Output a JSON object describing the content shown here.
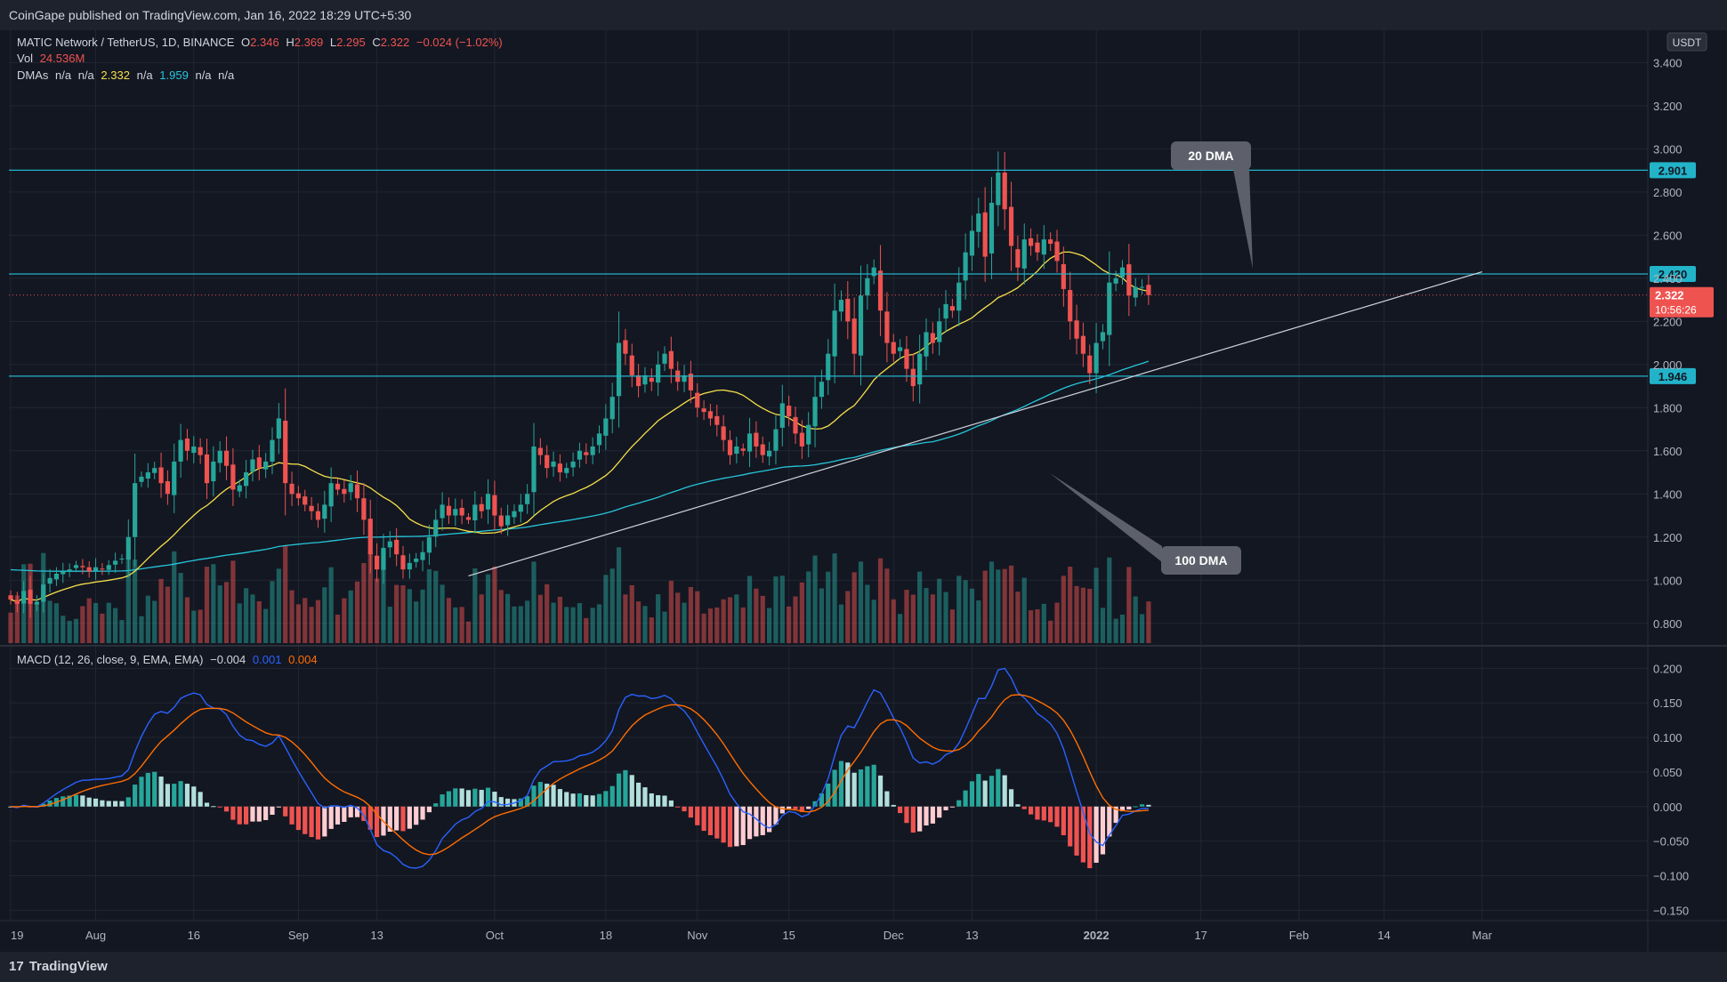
{
  "header": {
    "published": "CoinGape published on TradingView.com, Jan 16, 2022 18:29 UTC+5:30"
  },
  "footer": {
    "brand": "TradingView",
    "logo_mark": "17"
  },
  "legend": {
    "title": "MATIC Network / TetherUS, 1D, BINANCE",
    "o_label": "O",
    "o": "2.346",
    "h_label": "H",
    "h": "2.369",
    "l_label": "L",
    "l": "2.295",
    "c_label": "C",
    "c": "2.322",
    "chg": "−0.024 (−1.02%)",
    "vol_label": "Vol",
    "vol": "24.536M",
    "dma_label": "DMAs",
    "dma_values": [
      "n/a",
      "n/a",
      "2.332",
      "n/a",
      "1.959",
      "n/a",
      "n/a"
    ],
    "macd_label": "MACD (12, 26, close, 9, EMA, EMA)",
    "macd_values": [
      "−0.004",
      "0.001",
      "0.004"
    ]
  },
  "colors": {
    "bg": "#131722",
    "up": "#26a69a",
    "down": "#ef5350",
    "ma20": "#f5e04a",
    "ma100": "#26c6da",
    "macd": "#2962ff",
    "signal": "#ff6d00",
    "level": "#22b3c9",
    "currency_box": "#2a2e39"
  },
  "chart_data": {
    "type": "candlestick",
    "symbol": "MATIC Network / TetherUS",
    "interval": "1D",
    "exchange": "BINANCE",
    "currency": "USDT",
    "y_ticks": [
      "3.400",
      "3.200",
      "3.000",
      "2.800",
      "2.600",
      "2.400",
      "2.200",
      "2.000",
      "1.800",
      "1.600",
      "1.400",
      "1.200",
      "1.000",
      "0.800"
    ],
    "ylim": [
      0.7,
      3.55
    ],
    "x_ticks": [
      "19",
      "Aug",
      "16",
      "Sep",
      "13",
      "Oct",
      "18",
      "Nov",
      "15",
      "Dec",
      "13",
      "2022",
      "17",
      "Feb",
      "14",
      "Mar"
    ],
    "x_tick_dates": [
      "2021-07-19",
      "2021-08-01",
      "2021-08-16",
      "2021-09-01",
      "2021-09-13",
      "2021-10-01",
      "2021-10-18",
      "2021-11-01",
      "2021-11-15",
      "2021-12-01",
      "2021-12-13",
      "2022-01-01",
      "2022-01-17",
      "2022-02-01",
      "2022-02-14",
      "2022-03-01"
    ],
    "start_date": "2021-07-19",
    "levels": [
      {
        "price": 2.901,
        "label": "2.901"
      },
      {
        "price": 2.42,
        "label": "2.420"
      },
      {
        "price": 1.946,
        "label": "1.946"
      }
    ],
    "last_price": {
      "label": "2.322",
      "countdown": "10:56:26"
    },
    "trendline": {
      "from": {
        "date": "2021-09-27",
        "price": 1.02
      },
      "to": {
        "date": "2022-03-01",
        "price": 2.43
      }
    },
    "annotations": [
      {
        "text": "20 DMA"
      },
      {
        "text": "100 DMA"
      }
    ],
    "series": {
      "close": [
        0.91,
        0.89,
        0.95,
        0.89,
        0.9,
        0.98,
        1.01,
        1.03,
        1.04,
        1.05,
        1.07,
        1.06,
        1.04,
        1.06,
        1.05,
        1.07,
        1.09,
        1.1,
        1.2,
        1.45,
        1.48,
        1.5,
        1.52,
        1.45,
        1.4,
        1.55,
        1.65,
        1.6,
        1.62,
        1.58,
        1.45,
        1.55,
        1.6,
        1.53,
        1.42,
        1.44,
        1.5,
        1.56,
        1.52,
        1.55,
        1.65,
        1.75,
        1.45,
        1.4,
        1.38,
        1.35,
        1.32,
        1.28,
        1.35,
        1.45,
        1.42,
        1.4,
        1.45,
        1.38,
        1.28,
        1.12,
        1.05,
        1.15,
        1.18,
        1.12,
        1.05,
        1.08,
        1.1,
        1.13,
        1.2,
        1.28,
        1.35,
        1.3,
        1.33,
        1.3,
        1.28,
        1.35,
        1.32,
        1.4,
        1.3,
        1.25,
        1.3,
        1.32,
        1.35,
        1.4,
        1.62,
        1.58,
        1.52,
        1.55,
        1.5,
        1.52,
        1.55,
        1.6,
        1.58,
        1.62,
        1.68,
        1.75,
        1.85,
        2.1,
        2.05,
        1.95,
        1.9,
        1.95,
        1.92,
        2.0,
        2.05,
        1.98,
        1.92,
        1.95,
        1.88,
        1.8,
        1.78,
        1.75,
        1.72,
        1.65,
        1.58,
        1.62,
        1.6,
        1.68,
        1.62,
        1.58,
        1.6,
        1.7,
        1.82,
        1.76,
        1.68,
        1.62,
        1.72,
        1.85,
        1.92,
        2.05,
        2.25,
        2.3,
        2.2,
        2.05,
        2.32,
        2.4,
        2.45,
        2.25,
        2.1,
        2.05,
        2.08,
        1.98,
        1.9,
        2.05,
        2.15,
        2.1,
        2.2,
        2.28,
        2.25,
        2.38,
        2.52,
        2.62,
        2.7,
        2.5,
        2.75,
        2.89,
        2.72,
        2.55,
        2.45,
        2.58,
        2.55,
        2.52,
        2.58,
        2.56,
        2.48,
        2.35,
        2.2,
        2.12,
        2.05,
        1.96,
        2.1,
        2.15,
        2.38,
        2.4,
        2.45,
        2.32,
        2.36,
        2.36,
        2.322
      ]
    },
    "volume_label": "Vol"
  },
  "macd_data": {
    "type": "line",
    "ylim": [
      -0.165,
      0.23
    ],
    "y_ticks": [
      "0.200",
      "0.150",
      "0.100",
      "0.050",
      "0.000",
      "−0.050",
      "−0.100",
      "−0.150"
    ],
    "series_names": [
      "MACD",
      "Signal",
      "Histogram"
    ]
  }
}
